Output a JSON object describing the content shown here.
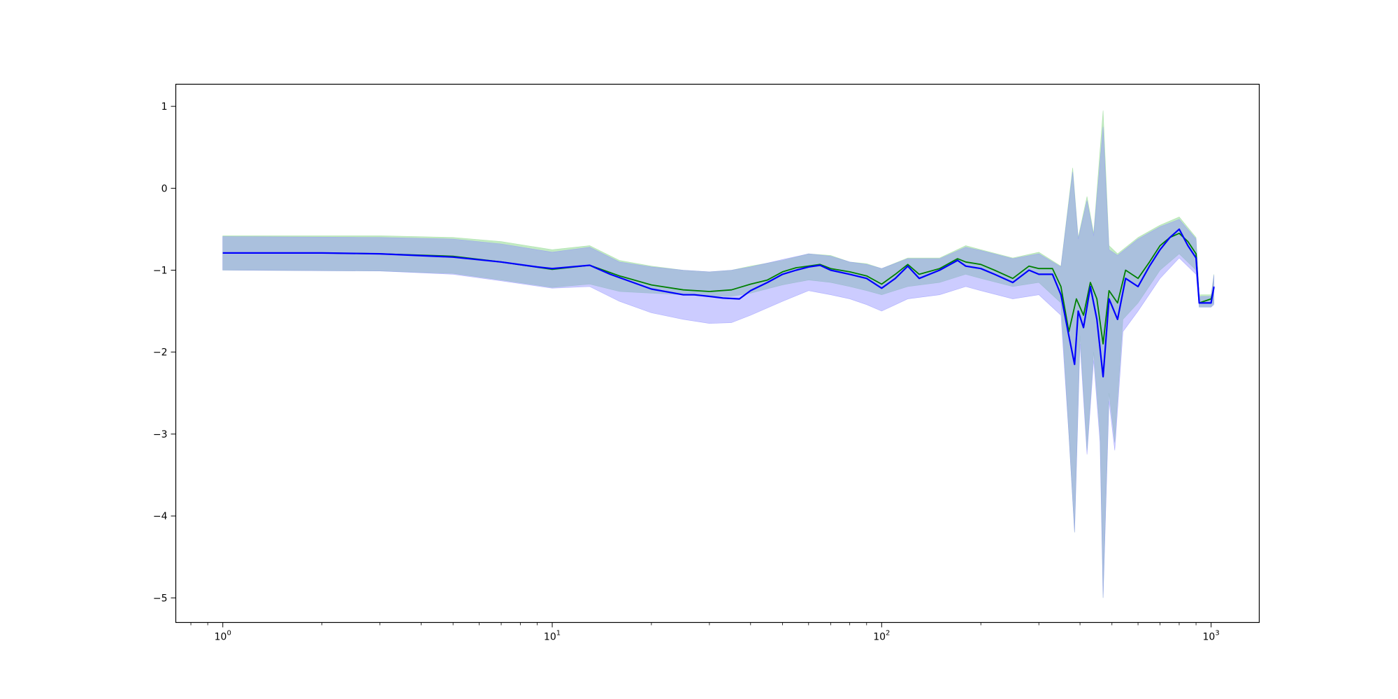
{
  "chart_data": {
    "type": "line",
    "title": "",
    "xlabel": "",
    "ylabel": "",
    "xscale": "log",
    "xlim": [
      0.72,
      1400
    ],
    "ylim": [
      -5.3,
      1.27
    ],
    "grid": false,
    "legend": "none",
    "x_ticks": [
      {
        "base": "10",
        "exp": "0",
        "value": 1
      },
      {
        "base": "10",
        "exp": "1",
        "value": 10
      },
      {
        "base": "10",
        "exp": "2",
        "value": 100
      },
      {
        "base": "10",
        "exp": "3",
        "value": 1000
      }
    ],
    "y_ticks": [
      {
        "label": "1",
        "value": 1
      },
      {
        "label": "0",
        "value": 0
      },
      {
        "label": "−1",
        "value": -1
      },
      {
        "label": "−2",
        "value": -2
      },
      {
        "label": "−3",
        "value": -3
      },
      {
        "label": "−4",
        "value": -4
      },
      {
        "label": "−5",
        "value": -5
      }
    ],
    "series": [
      {
        "color": "#008000",
        "band_color": "#90d890",
        "points": [
          [
            1,
            -0.79
          ],
          [
            2,
            -0.79
          ],
          [
            3,
            -0.8
          ],
          [
            5,
            -0.83
          ],
          [
            7,
            -0.9
          ],
          [
            10,
            -0.99
          ],
          [
            13,
            -0.94
          ],
          [
            16,
            -1.07
          ],
          [
            20,
            -1.18
          ],
          [
            25,
            -1.24
          ],
          [
            30,
            -1.26
          ],
          [
            35,
            -1.24
          ],
          [
            40,
            -1.17
          ],
          [
            45,
            -1.12
          ],
          [
            50,
            -1.02
          ],
          [
            55,
            -0.97
          ],
          [
            60,
            -0.95
          ],
          [
            65,
            -0.93
          ],
          [
            70,
            -0.98
          ],
          [
            80,
            -1.02
          ],
          [
            90,
            -1.07
          ],
          [
            100,
            -1.17
          ],
          [
            110,
            -1.05
          ],
          [
            120,
            -0.93
          ],
          [
            130,
            -1.05
          ],
          [
            150,
            -0.98
          ],
          [
            170,
            -0.86
          ],
          [
            180,
            -0.9
          ],
          [
            200,
            -0.93
          ],
          [
            220,
            -1.0
          ],
          [
            250,
            -1.1
          ],
          [
            280,
            -0.95
          ],
          [
            300,
            -0.98
          ],
          [
            330,
            -0.98
          ],
          [
            350,
            -1.2
          ],
          [
            370,
            -1.75
          ],
          [
            390,
            -1.35
          ],
          [
            410,
            -1.55
          ],
          [
            430,
            -1.15
          ],
          [
            450,
            -1.35
          ],
          [
            470,
            -1.9
          ],
          [
            490,
            -1.25
          ],
          [
            520,
            -1.4
          ],
          [
            550,
            -1.0
          ],
          [
            600,
            -1.1
          ],
          [
            650,
            -0.9
          ],
          [
            700,
            -0.7
          ],
          [
            750,
            -0.6
          ],
          [
            800,
            -0.55
          ],
          [
            850,
            -0.65
          ],
          [
            900,
            -0.8
          ],
          [
            920,
            -1.4
          ],
          [
            1000,
            -1.35
          ],
          [
            1020,
            -1.22
          ]
        ],
        "band_lower": [
          [
            1,
            -1.0
          ],
          [
            3,
            -1.01
          ],
          [
            5,
            -1.04
          ],
          [
            7,
            -1.12
          ],
          [
            10,
            -1.21
          ],
          [
            13,
            -1.17
          ],
          [
            16,
            -1.26
          ],
          [
            20,
            -1.28
          ],
          [
            25,
            -1.3
          ],
          [
            30,
            -1.32
          ],
          [
            35,
            -1.32
          ],
          [
            40,
            -1.28
          ],
          [
            50,
            -1.18
          ],
          [
            60,
            -1.12
          ],
          [
            70,
            -1.15
          ],
          [
            80,
            -1.2
          ],
          [
            90,
            -1.25
          ],
          [
            100,
            -1.3
          ],
          [
            120,
            -1.2
          ],
          [
            150,
            -1.15
          ],
          [
            180,
            -1.05
          ],
          [
            200,
            -1.1
          ],
          [
            250,
            -1.2
          ],
          [
            300,
            -1.15
          ],
          [
            350,
            -1.4
          ],
          [
            370,
            -3.0
          ],
          [
            385,
            -4.2
          ],
          [
            400,
            -1.8
          ],
          [
            420,
            -3.2
          ],
          [
            440,
            -2.0
          ],
          [
            460,
            -3.0
          ],
          [
            470,
            -5.0
          ],
          [
            490,
            -2.5
          ],
          [
            510,
            -3.1
          ],
          [
            540,
            -1.6
          ],
          [
            600,
            -1.4
          ],
          [
            700,
            -1.0
          ],
          [
            800,
            -0.8
          ],
          [
            900,
            -1.0
          ],
          [
            920,
            -1.45
          ],
          [
            1000,
            -1.45
          ],
          [
            1020,
            -1.4
          ]
        ],
        "band_upper": [
          [
            1,
            -0.58
          ],
          [
            3,
            -0.58
          ],
          [
            5,
            -0.6
          ],
          [
            7,
            -0.65
          ],
          [
            10,
            -0.75
          ],
          [
            13,
            -0.7
          ],
          [
            16,
            -0.88
          ],
          [
            20,
            -0.95
          ],
          [
            25,
            -1.0
          ],
          [
            30,
            -1.02
          ],
          [
            35,
            -1.0
          ],
          [
            40,
            -0.95
          ],
          [
            50,
            -0.88
          ],
          [
            60,
            -0.8
          ],
          [
            70,
            -0.82
          ],
          [
            80,
            -0.9
          ],
          [
            90,
            -0.92
          ],
          [
            100,
            -0.98
          ],
          [
            120,
            -0.85
          ],
          [
            150,
            -0.85
          ],
          [
            180,
            -0.7
          ],
          [
            200,
            -0.75
          ],
          [
            250,
            -0.85
          ],
          [
            300,
            -0.78
          ],
          [
            350,
            -0.95
          ],
          [
            380,
            0.25
          ],
          [
            395,
            -0.6
          ],
          [
            420,
            -0.1
          ],
          [
            440,
            -0.55
          ],
          [
            470,
            0.95
          ],
          [
            490,
            -0.7
          ],
          [
            520,
            -0.8
          ],
          [
            600,
            -0.6
          ],
          [
            700,
            -0.45
          ],
          [
            800,
            -0.35
          ],
          [
            900,
            -0.6
          ],
          [
            920,
            -1.3
          ],
          [
            1000,
            -1.3
          ],
          [
            1020,
            -1.05
          ]
        ]
      },
      {
        "color": "#0000ff",
        "band_color": "#8f8fff",
        "points": [
          [
            1,
            -0.79
          ],
          [
            2,
            -0.79
          ],
          [
            3,
            -0.8
          ],
          [
            5,
            -0.84
          ],
          [
            7,
            -0.9
          ],
          [
            9,
            -0.96
          ],
          [
            10,
            -0.98
          ],
          [
            13,
            -0.94
          ],
          [
            15,
            -1.05
          ],
          [
            20,
            -1.23
          ],
          [
            25,
            -1.3
          ],
          [
            27,
            -1.3
          ],
          [
            30,
            -1.32
          ],
          [
            33,
            -1.34
          ],
          [
            37,
            -1.35
          ],
          [
            40,
            -1.25
          ],
          [
            45,
            -1.15
          ],
          [
            50,
            -1.05
          ],
          [
            55,
            -1.0
          ],
          [
            60,
            -0.96
          ],
          [
            65,
            -0.94
          ],
          [
            70,
            -1.0
          ],
          [
            80,
            -1.05
          ],
          [
            90,
            -1.1
          ],
          [
            100,
            -1.22
          ],
          [
            110,
            -1.1
          ],
          [
            120,
            -0.95
          ],
          [
            130,
            -1.1
          ],
          [
            150,
            -1.0
          ],
          [
            170,
            -0.88
          ],
          [
            180,
            -0.95
          ],
          [
            200,
            -0.98
          ],
          [
            220,
            -1.05
          ],
          [
            250,
            -1.15
          ],
          [
            280,
            -1.0
          ],
          [
            300,
            -1.05
          ],
          [
            330,
            -1.05
          ],
          [
            350,
            -1.3
          ],
          [
            370,
            -1.8
          ],
          [
            385,
            -2.15
          ],
          [
            395,
            -1.5
          ],
          [
            410,
            -1.7
          ],
          [
            430,
            -1.2
          ],
          [
            450,
            -1.6
          ],
          [
            470,
            -2.3
          ],
          [
            490,
            -1.35
          ],
          [
            520,
            -1.6
          ],
          [
            550,
            -1.1
          ],
          [
            600,
            -1.2
          ],
          [
            650,
            -0.95
          ],
          [
            700,
            -0.75
          ],
          [
            750,
            -0.6
          ],
          [
            800,
            -0.5
          ],
          [
            850,
            -0.7
          ],
          [
            900,
            -0.85
          ],
          [
            920,
            -1.4
          ],
          [
            1000,
            -1.4
          ],
          [
            1020,
            -1.2
          ]
        ],
        "band_lower": [
          [
            1,
            -1.0
          ],
          [
            3,
            -1.01
          ],
          [
            5,
            -1.05
          ],
          [
            7,
            -1.13
          ],
          [
            10,
            -1.22
          ],
          [
            13,
            -1.2
          ],
          [
            16,
            -1.38
          ],
          [
            20,
            -1.52
          ],
          [
            25,
            -1.6
          ],
          [
            30,
            -1.65
          ],
          [
            35,
            -1.64
          ],
          [
            40,
            -1.55
          ],
          [
            50,
            -1.38
          ],
          [
            60,
            -1.25
          ],
          [
            70,
            -1.3
          ],
          [
            80,
            -1.35
          ],
          [
            90,
            -1.42
          ],
          [
            100,
            -1.5
          ],
          [
            120,
            -1.35
          ],
          [
            150,
            -1.3
          ],
          [
            180,
            -1.2
          ],
          [
            200,
            -1.25
          ],
          [
            250,
            -1.35
          ],
          [
            300,
            -1.3
          ],
          [
            350,
            -1.55
          ],
          [
            370,
            -3.0
          ],
          [
            385,
            -4.2
          ],
          [
            400,
            -1.9
          ],
          [
            420,
            -3.25
          ],
          [
            440,
            -2.1
          ],
          [
            460,
            -3.1
          ],
          [
            470,
            -5.0
          ],
          [
            490,
            -2.6
          ],
          [
            510,
            -3.2
          ],
          [
            540,
            -1.75
          ],
          [
            600,
            -1.5
          ],
          [
            700,
            -1.1
          ],
          [
            800,
            -0.85
          ],
          [
            900,
            -1.05
          ],
          [
            920,
            -1.45
          ],
          [
            1000,
            -1.45
          ],
          [
            1020,
            -1.42
          ]
        ],
        "band_upper": [
          [
            1,
            -0.59
          ],
          [
            3,
            -0.6
          ],
          [
            5,
            -0.62
          ],
          [
            7,
            -0.68
          ],
          [
            10,
            -0.78
          ],
          [
            13,
            -0.72
          ],
          [
            16,
            -0.9
          ],
          [
            20,
            -0.96
          ],
          [
            25,
            -1.0
          ],
          [
            30,
            -1.02
          ],
          [
            35,
            -1.0
          ],
          [
            40,
            -0.96
          ],
          [
            50,
            -0.87
          ],
          [
            60,
            -0.8
          ],
          [
            70,
            -0.83
          ],
          [
            80,
            -0.9
          ],
          [
            90,
            -0.93
          ],
          [
            100,
            -0.98
          ],
          [
            120,
            -0.86
          ],
          [
            150,
            -0.86
          ],
          [
            180,
            -0.72
          ],
          [
            200,
            -0.76
          ],
          [
            250,
            -0.86
          ],
          [
            300,
            -0.8
          ],
          [
            350,
            -0.96
          ],
          [
            380,
            0.2
          ],
          [
            395,
            -0.62
          ],
          [
            420,
            -0.15
          ],
          [
            440,
            -0.58
          ],
          [
            470,
            0.75
          ],
          [
            490,
            -0.75
          ],
          [
            520,
            -0.82
          ],
          [
            600,
            -0.62
          ],
          [
            700,
            -0.47
          ],
          [
            800,
            -0.38
          ],
          [
            900,
            -0.62
          ],
          [
            920,
            -1.32
          ],
          [
            1000,
            -1.32
          ],
          [
            1020,
            -1.06
          ]
        ]
      }
    ]
  }
}
